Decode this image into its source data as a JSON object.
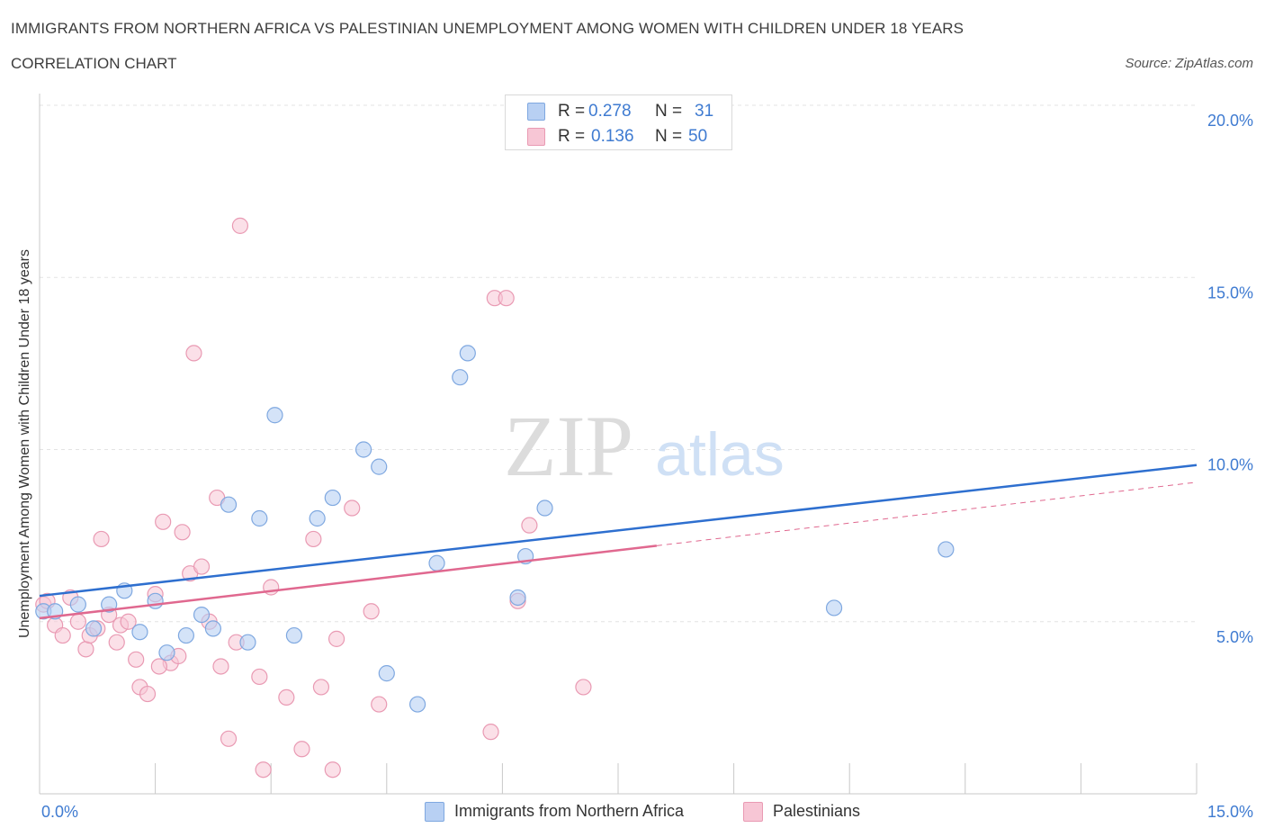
{
  "title": "IMMIGRANTS FROM NORTHERN AFRICA VS PALESTINIAN UNEMPLOYMENT AMONG WOMEN WITH CHILDREN UNDER 18 YEARS",
  "subtitle": "CORRELATION CHART",
  "source": "Source: ZipAtlas.com",
  "watermark": {
    "zip": "ZIP",
    "atlas": "atlas"
  },
  "colors": {
    "blue_fill": "#b8d0f3",
    "blue_stroke": "#7fa8e0",
    "blue_line": "#2e6fcf",
    "pink_fill": "#f7c6d5",
    "pink_stroke": "#e99ab3",
    "pink_line": "#e0688f",
    "axis_text": "#3f7bd1",
    "grid": "#e3e3e3"
  },
  "legend": {
    "rows": [
      {
        "r_label": "R =",
        "r_value": "0.278",
        "n_label": "N =",
        "n_value": "31"
      },
      {
        "r_label": "R =",
        "r_value": "0.136",
        "n_label": "N =",
        "n_value": "50"
      }
    ]
  },
  "bottom_legend": [
    "Immigrants from Northern Africa",
    "Palestinians"
  ],
  "chart_data": {
    "type": "scatter",
    "xlabel": "",
    "ylabel": "Unemployment Among Women with Children Under 18 years",
    "xlim": [
      0,
      15
    ],
    "ylim": [
      0,
      20
    ],
    "x_tick_labels": [
      "0.0%",
      "15.0%"
    ],
    "y_ticks": [
      5,
      10,
      15,
      20
    ],
    "y_tick_labels": [
      "5.0%",
      "10.0%",
      "15.0%",
      "20.0%"
    ],
    "grid": true,
    "legend_position": "top-center",
    "series": [
      {
        "name": "Immigrants from Northern Africa",
        "r": 0.278,
        "n": 31,
        "trend": {
          "x": [
            0,
            15
          ],
          "y": [
            5.75,
            9.55
          ],
          "dashed_from": null
        },
        "points": [
          [
            0.05,
            5.3
          ],
          [
            0.2,
            5.3
          ],
          [
            0.5,
            5.5
          ],
          [
            0.7,
            4.8
          ],
          [
            0.9,
            5.5
          ],
          [
            1.1,
            5.9
          ],
          [
            1.3,
            4.7
          ],
          [
            1.5,
            5.6
          ],
          [
            1.65,
            4.1
          ],
          [
            1.9,
            4.6
          ],
          [
            2.1,
            5.2
          ],
          [
            2.25,
            4.8
          ],
          [
            2.45,
            8.4
          ],
          [
            2.7,
            4.4
          ],
          [
            2.85,
            8.0
          ],
          [
            3.05,
            11.0
          ],
          [
            3.3,
            4.6
          ],
          [
            3.6,
            8.0
          ],
          [
            3.8,
            8.6
          ],
          [
            4.2,
            10.0
          ],
          [
            4.4,
            9.5
          ],
          [
            4.5,
            3.5
          ],
          [
            4.9,
            2.6
          ],
          [
            5.15,
            6.7
          ],
          [
            5.45,
            12.1
          ],
          [
            5.55,
            12.8
          ],
          [
            6.2,
            5.7
          ],
          [
            6.3,
            6.9
          ],
          [
            6.55,
            8.3
          ],
          [
            10.3,
            5.4
          ],
          [
            11.75,
            7.1
          ]
        ]
      },
      {
        "name": "Palestinians",
        "r": 0.136,
        "n": 50,
        "trend": {
          "x": [
            0,
            15
          ],
          "y": [
            5.1,
            9.05
          ],
          "solid_until": 8.0
        },
        "points": [
          [
            0.05,
            5.5
          ],
          [
            0.2,
            4.9
          ],
          [
            0.3,
            4.6
          ],
          [
            0.4,
            5.7
          ],
          [
            0.5,
            5.0
          ],
          [
            0.6,
            4.2
          ],
          [
            0.65,
            4.6
          ],
          [
            0.75,
            4.8
          ],
          [
            0.8,
            7.4
          ],
          [
            0.9,
            5.2
          ],
          [
            1.0,
            4.4
          ],
          [
            1.05,
            4.9
          ],
          [
            1.15,
            5.0
          ],
          [
            1.25,
            3.9
          ],
          [
            1.3,
            3.1
          ],
          [
            1.4,
            2.9
          ],
          [
            1.5,
            5.8
          ],
          [
            1.6,
            7.9
          ],
          [
            1.7,
            3.8
          ],
          [
            1.8,
            4.0
          ],
          [
            1.85,
            7.6
          ],
          [
            1.95,
            6.4
          ],
          [
            2.0,
            12.8
          ],
          [
            2.1,
            6.6
          ],
          [
            2.2,
            5.0
          ],
          [
            2.3,
            8.6
          ],
          [
            2.35,
            3.7
          ],
          [
            2.45,
            1.6
          ],
          [
            2.55,
            4.4
          ],
          [
            2.6,
            16.5
          ],
          [
            2.85,
            3.4
          ],
          [
            2.9,
            0.7
          ],
          [
            3.0,
            6.0
          ],
          [
            3.2,
            2.8
          ],
          [
            3.4,
            1.3
          ],
          [
            3.55,
            7.4
          ],
          [
            3.65,
            3.1
          ],
          [
            3.8,
            0.7
          ],
          [
            3.85,
            4.5
          ],
          [
            4.05,
            8.3
          ],
          [
            4.3,
            5.3
          ],
          [
            4.4,
            2.6
          ],
          [
            5.85,
            1.8
          ],
          [
            5.9,
            14.4
          ],
          [
            6.05,
            14.4
          ],
          [
            6.2,
            5.6
          ],
          [
            6.35,
            7.8
          ],
          [
            7.05,
            3.1
          ],
          [
            0.1,
            5.6
          ],
          [
            1.55,
            3.7
          ]
        ]
      }
    ]
  }
}
